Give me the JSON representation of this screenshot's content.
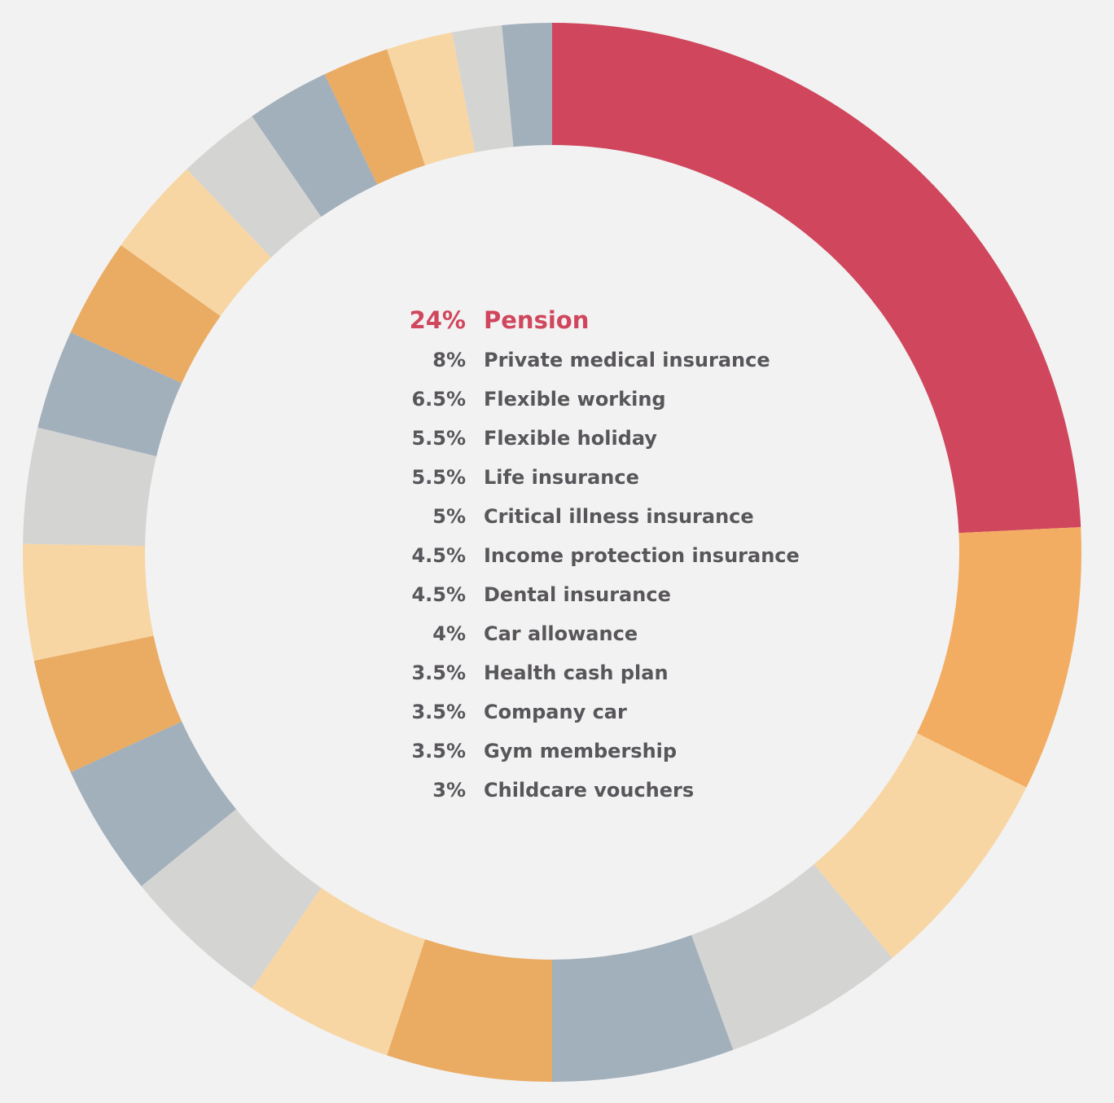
{
  "chart_data": {
    "type": "pie",
    "legend": [
      {
        "pct": "24%",
        "label": "Pension"
      },
      {
        "pct": "8%",
        "label": "Private medical insurance"
      },
      {
        "pct": "6.5%",
        "label": "Flexible working"
      },
      {
        "pct": "5.5%",
        "label": "Flexible holiday"
      },
      {
        "pct": "5.5%",
        "label": "Life insurance"
      },
      {
        "pct": "5%",
        "label": "Critical illness insurance"
      },
      {
        "pct": "4.5%",
        "label": "Income protection insurance"
      },
      {
        "pct": "4.5%",
        "label": "Dental insurance"
      },
      {
        "pct": "4%",
        "label": "Car allowance"
      },
      {
        "pct": "3.5%",
        "label": "Health cash plan"
      },
      {
        "pct": "3.5%",
        "label": "Company car"
      },
      {
        "pct": "3.5%",
        "label": "Gym membership"
      },
      {
        "pct": "3%",
        "label": "Childcare vouchers"
      }
    ],
    "slices": [
      24,
      8,
      6.5,
      5.5,
      5.5,
      5,
      4.5,
      4.5,
      4,
      3.5,
      3.5,
      3.5,
      3,
      3,
      3,
      2.5,
      2.5,
      2,
      2,
      1.5,
      1.5
    ],
    "slice_colors": [
      "#d0465d",
      "#f2ad62",
      "#f7d6a4",
      "#d4d4d2",
      "#a2b0bc",
      "#eaab63",
      "#f7d6a4",
      "#d4d4d2",
      "#a2b0bc",
      "#eaab63",
      "#f7d6a4",
      "#d4d4d2",
      "#a2b0bc",
      "#eaab63",
      "#f7d6a4",
      "#d4d4d2",
      "#a2b0bc",
      "#eaab63",
      "#f7d6a4",
      "#d4d4d2",
      "#a2b0bc"
    ],
    "highlight_color": "#d0465d",
    "text_color": "#58565a",
    "background_color": "#f2f2f2"
  }
}
